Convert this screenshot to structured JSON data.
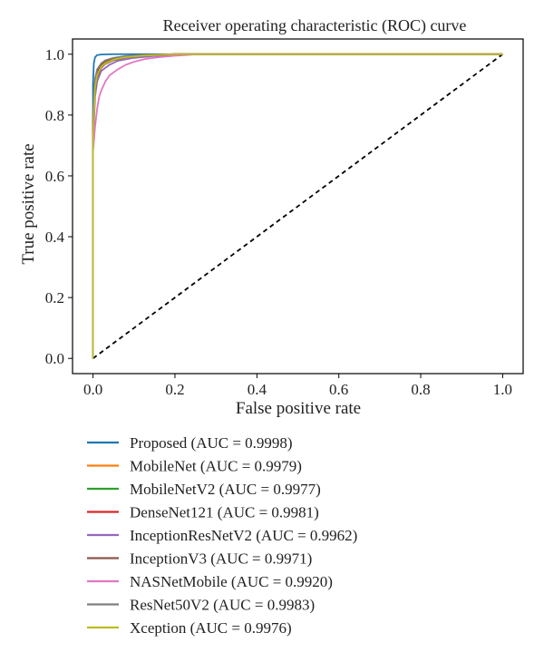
{
  "chart_data": {
    "type": "line",
    "title": "Receiver operating characteristic (ROC) curve",
    "xlabel": "False positive rate",
    "ylabel": "True positive rate",
    "xlim": [
      -0.05,
      1.05
    ],
    "ylim": [
      -0.05,
      1.05
    ],
    "xticks": [
      0.0,
      0.2,
      0.4,
      0.6,
      0.8,
      1.0
    ],
    "yticks": [
      0.0,
      0.2,
      0.4,
      0.6,
      0.8,
      1.0
    ],
    "xtick_labels": [
      "0.0",
      "0.2",
      "0.4",
      "0.6",
      "0.8",
      "1.0"
    ],
    "ytick_labels": [
      "0.0",
      "0.2",
      "0.4",
      "0.6",
      "0.8",
      "1.0"
    ],
    "grid": false,
    "legend_placement": "below",
    "baseline": {
      "x": [
        0,
        1
      ],
      "y": [
        0,
        1
      ],
      "style": "dashed",
      "color": "#000000"
    },
    "series": [
      {
        "name": "Proposed (AUC = 0.9998)",
        "color": "#1f77b4",
        "x": [
          0,
          0,
          0.002,
          0.005,
          0.01,
          0.02,
          0.05,
          1.0
        ],
        "y": [
          0,
          0.9,
          0.97,
          0.99,
          0.997,
          0.999,
          1.0,
          1.0
        ]
      },
      {
        "name": "MobileNet (AUC = 0.9979)",
        "color": "#ff7f0e",
        "x": [
          0,
          0,
          0.005,
          0.01,
          0.02,
          0.03,
          0.05,
          0.08,
          0.12,
          0.2,
          1.0
        ],
        "y": [
          0,
          0.75,
          0.9,
          0.94,
          0.965,
          0.975,
          0.985,
          0.992,
          0.996,
          1.0,
          1.0
        ]
      },
      {
        "name": "MobileNetV2 (AUC = 0.9977)",
        "color": "#2ca02c",
        "x": [
          0,
          0,
          0.005,
          0.01,
          0.02,
          0.03,
          0.05,
          0.08,
          0.12,
          0.2,
          1.0
        ],
        "y": [
          0,
          0.74,
          0.89,
          0.935,
          0.96,
          0.972,
          0.983,
          0.991,
          0.995,
          1.0,
          1.0
        ]
      },
      {
        "name": "DenseNet121 (AUC = 0.9981)",
        "color": "#d62728",
        "x": [
          0,
          0,
          0.005,
          0.01,
          0.02,
          0.03,
          0.05,
          0.08,
          0.12,
          0.2,
          1.0
        ],
        "y": [
          0,
          0.78,
          0.91,
          0.945,
          0.968,
          0.978,
          0.987,
          0.993,
          0.997,
          1.0,
          1.0
        ]
      },
      {
        "name": "InceptionResNetV2 (AUC = 0.9962)",
        "color": "#9467bd",
        "x": [
          0,
          0,
          0.005,
          0.01,
          0.02,
          0.04,
          0.06,
          0.1,
          0.15,
          0.25,
          1.0
        ],
        "y": [
          0,
          0.7,
          0.86,
          0.91,
          0.945,
          0.965,
          0.978,
          0.988,
          0.994,
          1.0,
          1.0
        ]
      },
      {
        "name": "InceptionV3 (AUC = 0.9971)",
        "color": "#8c564b",
        "x": [
          0,
          0,
          0.005,
          0.01,
          0.02,
          0.03,
          0.05,
          0.08,
          0.12,
          0.2,
          1.0
        ],
        "y": [
          0,
          0.72,
          0.88,
          0.925,
          0.955,
          0.968,
          0.98,
          0.989,
          0.995,
          1.0,
          1.0
        ]
      },
      {
        "name": "NASNetMobile (AUC = 0.9920)",
        "color": "#e377c2",
        "x": [
          0,
          0,
          0.005,
          0.01,
          0.015,
          0.02,
          0.03,
          0.04,
          0.06,
          0.08,
          0.1,
          0.13,
          0.16,
          0.2,
          0.26,
          1.0
        ],
        "y": [
          0,
          0.68,
          0.76,
          0.82,
          0.86,
          0.88,
          0.91,
          0.93,
          0.95,
          0.965,
          0.975,
          0.985,
          0.99,
          0.995,
          1.0,
          1.0
        ]
      },
      {
        "name": "ResNet50V2 (AUC = 0.9983)",
        "color": "#7f7f7f",
        "x": [
          0,
          0,
          0.005,
          0.01,
          0.02,
          0.03,
          0.05,
          0.08,
          0.12,
          0.2,
          1.0
        ],
        "y": [
          0,
          0.8,
          0.92,
          0.95,
          0.97,
          0.98,
          0.988,
          0.994,
          0.997,
          1.0,
          1.0
        ]
      },
      {
        "name": "Xception (AUC = 0.9976)",
        "color": "#bcbd22",
        "x": [
          0,
          0,
          0.005,
          0.01,
          0.02,
          0.03,
          0.05,
          0.08,
          0.12,
          0.2,
          1.0
        ],
        "y": [
          0,
          0.73,
          0.89,
          0.93,
          0.958,
          0.97,
          0.982,
          0.99,
          0.995,
          1.0,
          1.0
        ]
      }
    ]
  }
}
